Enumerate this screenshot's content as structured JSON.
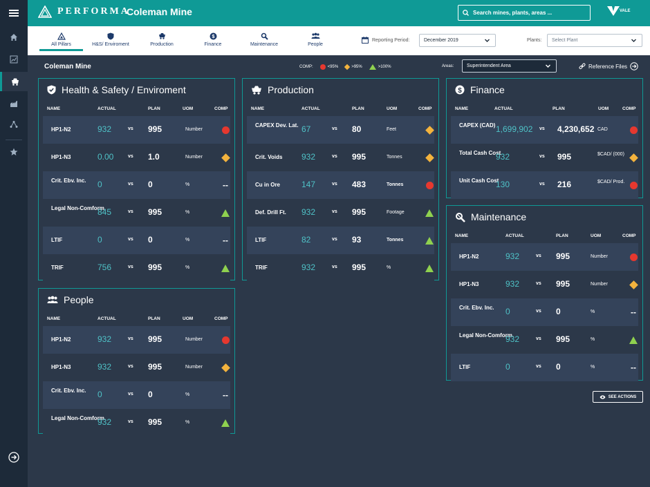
{
  "app": {
    "brand": "PERFORMA",
    "site_title": "Coleman Mine",
    "logo_text": "VALE",
    "search_placeholder": "Search mines, plants, areas ..."
  },
  "nav": {
    "tabs": [
      {
        "label": "All Pillars",
        "icon": "pillars-icon",
        "active": true
      },
      {
        "label": "H&S/ Enviroment",
        "icon": "shield-icon"
      },
      {
        "label": "Production",
        "icon": "mine-cart-icon"
      },
      {
        "label": "Finance",
        "icon": "dollar-icon"
      },
      {
        "label": "Maintenance",
        "icon": "wrench-icon"
      },
      {
        "label": "People",
        "icon": "people-icon"
      }
    ],
    "reporting_label": "Reporting Period:",
    "reporting_value": "December 2019",
    "plants_label": "Plants:",
    "plants_placeholder": "Select Plant"
  },
  "filter": {
    "page_title": "Coleman Mine",
    "comp_label": "COMP:",
    "legend": [
      {
        "shape": "dot",
        "label": "<95%"
      },
      {
        "shape": "diamond",
        "label": ">95%"
      },
      {
        "shape": "triangle",
        "label": ">100%"
      }
    ],
    "areas_label": "Areas:",
    "areas_value": "Superintendent Area",
    "reference_files": "Reference Files"
  },
  "columns": {
    "name": "NAME",
    "actual": "ACTUAL",
    "plan": "PLAN",
    "uom": "UOM",
    "comp": "COMP",
    "vs": "vs"
  },
  "cards": {
    "hs": {
      "title": "Health & Safety / Enviroment",
      "rows": [
        {
          "name": "HP1-N2",
          "actual": "932",
          "plan": "995",
          "uom": "Number",
          "comp": "dot"
        },
        {
          "name": "HP1-N3",
          "actual": "0.00",
          "plan": "1.0",
          "uom": "Number",
          "comp": "diamond"
        },
        {
          "name": "Crit. Ebv. Inc.",
          "actual": "0",
          "plan": "0",
          "uom": "%",
          "comp": "--"
        },
        {
          "name": "Legal Non-Comform.",
          "actual": "845",
          "plan": "995",
          "uom": "%",
          "comp": "triangle"
        },
        {
          "name": "LTIF",
          "actual": "0",
          "plan": "0",
          "uom": "%",
          "comp": "--"
        },
        {
          "name": "TRIF",
          "actual": "756",
          "plan": "995",
          "uom": "%",
          "comp": "triangle"
        }
      ]
    },
    "production": {
      "title": "Production",
      "rows": [
        {
          "name": "CAPEX Dev. Lat.",
          "actual": "67",
          "plan": "80",
          "uom": "Feet",
          "comp": "diamond"
        },
        {
          "name": "Crit. Voids",
          "actual": "932",
          "plan": "995",
          "uom": "Tonnes",
          "comp": "diamond"
        },
        {
          "name": "Cu in Ore",
          "actual": "147",
          "plan": "483",
          "uom": "Tonnes",
          "comp": "dot"
        },
        {
          "name": "Def. Drill Ft.",
          "actual": "932",
          "plan": "995",
          "uom": "Footage",
          "comp": "triangle"
        },
        {
          "name": "LTIF",
          "actual": "82",
          "plan": "93",
          "uom": "Tonnes",
          "comp": "triangle"
        },
        {
          "name": "TRIF",
          "actual": "932",
          "plan": "995",
          "uom": "%",
          "comp": "triangle"
        }
      ]
    },
    "finance": {
      "title": "Finance",
      "rows": [
        {
          "name": "CAPEX (CAD)",
          "actual": "1,699,902",
          "plan": "4,230,652",
          "uom": "CAD",
          "comp": "dot"
        },
        {
          "name": "Total Cash Cost",
          "actual": "932",
          "plan": "995",
          "uom": "$CAD/ (000)",
          "comp": "diamond"
        },
        {
          "name": "Unit Cash Cost",
          "actual": "130",
          "plan": "216",
          "uom": "$CAD/ Prod.",
          "comp": "dot"
        }
      ]
    },
    "maintenance": {
      "title": "Maintenance",
      "rows": [
        {
          "name": "HP1-N2",
          "actual": "932",
          "plan": "995",
          "uom": "Number",
          "comp": "dot"
        },
        {
          "name": "HP1-N3",
          "actual": "932",
          "plan": "995",
          "uom": "Number",
          "comp": "diamond"
        },
        {
          "name": "Crit. Ebv. Inc.",
          "actual": "0",
          "plan": "0",
          "uom": "%",
          "comp": "--"
        },
        {
          "name": "Legal Non-Comform.",
          "actual": "932",
          "plan": "995",
          "uom": "%",
          "comp": "triangle"
        },
        {
          "name": "LTIF",
          "actual": "0",
          "plan": "0",
          "uom": "%",
          "comp": "--"
        }
      ]
    },
    "people": {
      "title": "People",
      "rows": [
        {
          "name": "HP1-N2",
          "actual": "932",
          "plan": "995",
          "uom": "Number",
          "comp": "dot"
        },
        {
          "name": "HP1-N3",
          "actual": "932",
          "plan": "995",
          "uom": "Number",
          "comp": "diamond"
        },
        {
          "name": "Crit. Ebv. Inc.",
          "actual": "0",
          "plan": "0",
          "uom": "%",
          "comp": "--"
        },
        {
          "name": "Legal Non-Comform.",
          "actual": "932",
          "plan": "995",
          "uom": "%",
          "comp": "triangle"
        }
      ]
    }
  },
  "actions": {
    "see_actions": "SEE ACTIONS"
  },
  "colors": {
    "teal": "#0f9a96",
    "navy": "#1d2a39",
    "bg": "#2c3849",
    "actual": "#4fc2c7",
    "red": "#e6382f",
    "orange": "#f3b33d",
    "green": "#8fd14f"
  }
}
